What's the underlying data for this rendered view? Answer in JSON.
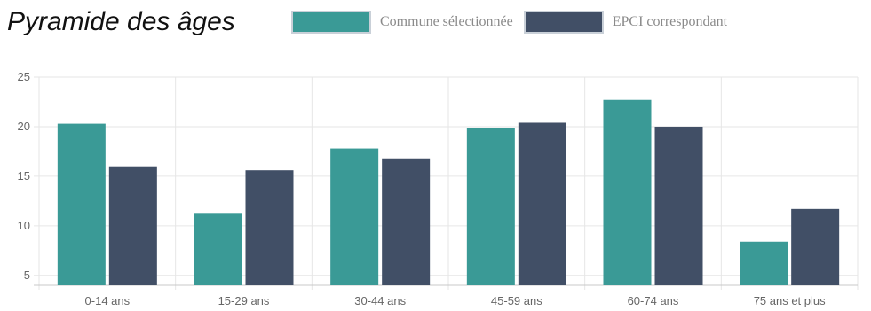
{
  "title": "Pyramide des âges",
  "colors": {
    "commune": "#3a9a96",
    "epci": "#414f66",
    "grid": "#e6e6e6",
    "axis": "#c8c8c8"
  },
  "chart_data": {
    "type": "bar",
    "categories": [
      "0-14 ans",
      "15-29 ans",
      "30-44 ans",
      "45-59 ans",
      "60-74 ans",
      "75 ans et plus"
    ],
    "series": [
      {
        "name": "Commune sélectionnée",
        "values": [
          20.3,
          11.3,
          17.8,
          19.9,
          22.7,
          8.4
        ]
      },
      {
        "name": "EPCI correspondant",
        "values": [
          16.0,
          15.6,
          16.8,
          20.4,
          20.0,
          11.7
        ]
      }
    ],
    "yticks": [
      5,
      10,
      15,
      20,
      25
    ],
    "ylim": [
      4,
      25
    ],
    "grid": true,
    "legend_position": "top-right"
  }
}
